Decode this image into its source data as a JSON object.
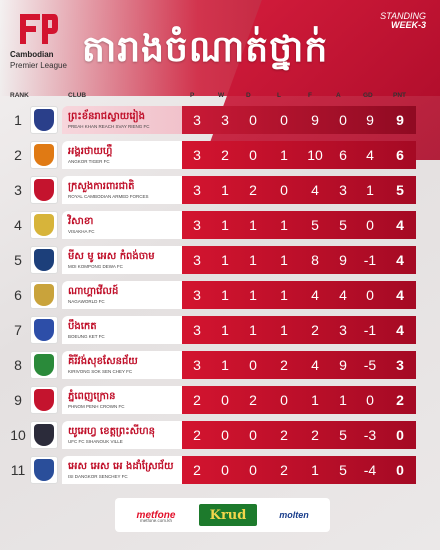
{
  "header": {
    "logo_line1": "Cambodian",
    "logo_line2": "Premier League",
    "title": "តារាងចំណាត់ថ្នាក់",
    "standing_label": "STANDING",
    "week_label": "WEEK-3"
  },
  "columns": {
    "rank": "RANK",
    "club": "CLUB",
    "p": "P",
    "w": "W",
    "d": "D",
    "l": "L",
    "f": "F",
    "a": "A",
    "gd": "GD",
    "pnt": "PNT"
  },
  "colors": {
    "accent_red": "#d3142f",
    "dark_red": "#a50a24",
    "club_text_red": "#c0102a"
  },
  "rows": [
    {
      "rank": "1",
      "name_km": "ព្រះខ័នរាជស្វាយរៀង",
      "name_en": "PREAH KHAN REACH SVAY RIENG FC",
      "p": "3",
      "w": "3",
      "d": "0",
      "l": "0",
      "f": "9",
      "a": "0",
      "gd": "9",
      "pnt": "9",
      "badge_color": "#2a3f8a"
    },
    {
      "rank": "2",
      "name_km": "អង្គរថាយហ្គឺ",
      "name_en": "ANGKOR TIGER FC",
      "p": "3",
      "w": "2",
      "d": "0",
      "l": "1",
      "f": "10",
      "a": "6",
      "gd": "4",
      "pnt": "6",
      "badge_color": "#e07a14"
    },
    {
      "rank": "3",
      "name_km": "ក្រសួងការពារជាតិ",
      "name_en": "ROYAL CAMBODIAN ARMED FORCES",
      "p": "3",
      "w": "1",
      "d": "2",
      "l": "0",
      "f": "4",
      "a": "3",
      "gd": "1",
      "pnt": "5",
      "badge_color": "#c4142e"
    },
    {
      "rank": "4",
      "name_km": "វិសាខា",
      "name_en": "VISAKHA FC",
      "p": "3",
      "w": "1",
      "d": "1",
      "l": "1",
      "f": "5",
      "a": "5",
      "gd": "0",
      "pnt": "4",
      "badge_color": "#d7b43a"
    },
    {
      "rank": "5",
      "name_km": "មីស មូ អេស កំពង់ចាម",
      "name_en": "MOI KOMPONG DEWA FC",
      "p": "3",
      "w": "1",
      "d": "1",
      "l": "1",
      "f": "8",
      "a": "9",
      "gd": "-1",
      "pnt": "4",
      "badge_color": "#1c3f7a"
    },
    {
      "rank": "6",
      "name_km": "ណាហ្គាវើលដ៍",
      "name_en": "NAGAWORLD FC",
      "p": "3",
      "w": "1",
      "d": "1",
      "l": "1",
      "f": "4",
      "a": "4",
      "gd": "0",
      "pnt": "4",
      "badge_color": "#c9a33b"
    },
    {
      "rank": "7",
      "name_km": "បឹងកេត",
      "name_en": "BOEUNG KET FC",
      "p": "3",
      "w": "1",
      "d": "1",
      "l": "1",
      "f": "2",
      "a": "3",
      "gd": "-1",
      "pnt": "4",
      "badge_color": "#2d4ea8"
    },
    {
      "rank": "8",
      "name_km": "គិរីវង់សុខសែនជ័យ",
      "name_en": "KIRIVONG SOK SEN CHEY FC",
      "p": "3",
      "w": "1",
      "d": "0",
      "l": "2",
      "f": "4",
      "a": "9",
      "gd": "-5",
      "pnt": "3",
      "badge_color": "#2a8a3a"
    },
    {
      "rank": "9",
      "name_km": "ភ្នំពេញក្រោន",
      "name_en": "PHNOM PENH CROWN FC",
      "p": "2",
      "w": "0",
      "d": "2",
      "l": "0",
      "f": "1",
      "a": "1",
      "gd": "0",
      "pnt": "2",
      "badge_color": "#c4142e"
    },
    {
      "rank": "10",
      "name_km": "យូអេហ្វ ខេត្តព្រះសីហនុ",
      "name_en": "UFC FC SIHANOUK VILLE",
      "p": "2",
      "w": "0",
      "d": "0",
      "l": "2",
      "f": "2",
      "a": "5",
      "gd": "-3",
      "pnt": "0",
      "badge_color": "#2b2b3a"
    },
    {
      "rank": "11",
      "name_km": "អេស អេស អេ ងដាំស្រែជ័យ",
      "name_en": "ISI DANGKOR SENCHEY FC",
      "p": "2",
      "w": "0",
      "d": "0",
      "l": "2",
      "f": "1",
      "a": "5",
      "gd": "-4",
      "pnt": "0",
      "badge_color": "#2a4e9a"
    }
  ],
  "sponsors": {
    "s1": "metfone",
    "s1_sub": "metfone.com.kh",
    "s2": "Krud",
    "s3": "molten"
  }
}
